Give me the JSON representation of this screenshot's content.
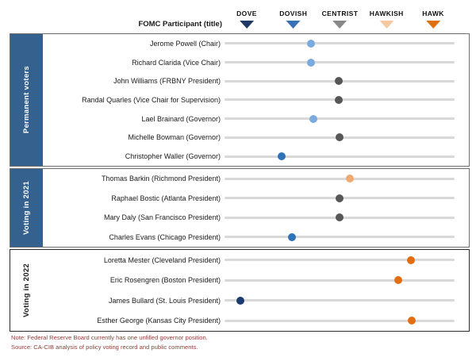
{
  "header": {
    "participant_label": "FOMC Participant (title)"
  },
  "notes": {
    "note": "Note: Federal Reserve Board currently has one unfilled governor position.",
    "source": "Source: CA-CIB analysis of policy voting record and public comments."
  },
  "colors": {
    "section_box_blue": "#35618e",
    "track_gray": "#d9d9d9",
    "note_red": "#8e3f38",
    "text_dark": "#1a1a1a"
  },
  "chart_data": {
    "type": "scatter",
    "x_categories": [
      "DOVE",
      "DOVISH",
      "CENTRIST",
      "HAWKISH",
      "HAWK"
    ],
    "x_values_map": {
      "DOVE": 0,
      "DOVISH": 1,
      "CENTRIST": 2,
      "HAWKISH": 3,
      "HAWK": 4
    },
    "x_range": [
      -0.55,
      4.55
    ],
    "legend_position": "top",
    "grid": false,
    "legend_colors": [
      "#1f3864",
      "#3a72b8",
      "#898989",
      "#f7c9a3",
      "#e0710f"
    ],
    "tone_colors": {
      "navy": "#1d3c6e",
      "blue": "#2e72b8",
      "light_blue": "#7aaade",
      "gray": "#575757",
      "light_orange": "#f0a970",
      "orange": "#e36d11"
    },
    "groups": [
      {
        "label": "Permanent voters",
        "box": "blue",
        "rows": [
          {
            "name": "Jerome Powell (Chair)",
            "value": 1.38,
            "tone": "light_blue"
          },
          {
            "name": "Richard Clarida (Vice Chair)",
            "value": 1.38,
            "tone": "light_blue"
          },
          {
            "name": "John Williams (FRBNY President)",
            "value": 1.97,
            "tone": "gray"
          },
          {
            "name": "Randal Quarles (Vice Chair for Supervision)",
            "value": 1.97,
            "tone": "gray"
          },
          {
            "name": "Lael Brainard (Governor)",
            "value": 1.43,
            "tone": "light_blue"
          },
          {
            "name": "Michelle Bowman (Governor)",
            "value": 1.99,
            "tone": "gray"
          },
          {
            "name": "Christopher Waller (Governor)",
            "value": 0.75,
            "tone": "blue"
          }
        ]
      },
      {
        "label": "Voting in 2021",
        "box": "blue",
        "rows": [
          {
            "name": "Thomas Barkin (Richmond President)",
            "value": 2.21,
            "tone": "light_orange"
          },
          {
            "name": "Raphael Bostic (Atlanta President)",
            "value": 1.99,
            "tone": "gray"
          },
          {
            "name": "Mary Daly (San Francisco President)",
            "value": 1.99,
            "tone": "gray"
          },
          {
            "name": "Charles Evans (Chicago President)",
            "value": 0.97,
            "tone": "blue"
          }
        ]
      },
      {
        "label": "Voting in 2022",
        "box": "none",
        "rows": [
          {
            "name": "Loretta Mester (Cleveland President)",
            "value": 3.52,
            "tone": "orange"
          },
          {
            "name": "Eric Rosengren (Boston President)",
            "value": 3.25,
            "tone": "orange"
          },
          {
            "name": "James Bullard (St. Louis President)",
            "value": -0.14,
            "tone": "navy"
          },
          {
            "name": "Esther George (Kansas City President)",
            "value": 3.54,
            "tone": "orange"
          }
        ]
      }
    ]
  }
}
